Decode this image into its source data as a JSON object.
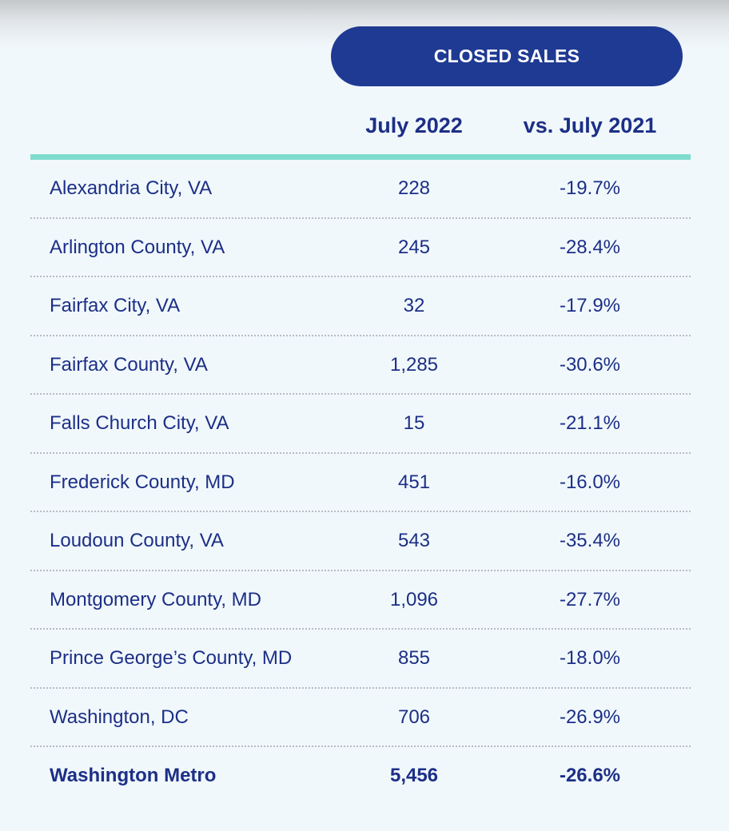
{
  "header": {
    "section_title": "CLOSED SALES",
    "col_current": "July 2022",
    "col_change": "vs. July 2021"
  },
  "rows": [
    {
      "name": "Alexandria City, VA",
      "value": "228",
      "change": "-19.7%"
    },
    {
      "name": "Arlington County, VA",
      "value": "245",
      "change": "-28.4%"
    },
    {
      "name": "Fairfax City, VA",
      "value": "32",
      "change": "-17.9%"
    },
    {
      "name": "Fairfax County, VA",
      "value": "1,285",
      "change": "-30.6%"
    },
    {
      "name": "Falls Church City, VA",
      "value": "15",
      "change": "-21.1%"
    },
    {
      "name": "Frederick County, MD",
      "value": "451",
      "change": "-16.0%"
    },
    {
      "name": "Loudoun County, VA",
      "value": "543",
      "change": "-35.4%"
    },
    {
      "name": "Montgomery County, MD",
      "value": "1,096",
      "change": "-27.7%"
    },
    {
      "name": "Prince George’s County, MD",
      "value": "855",
      "change": "-18.0%"
    },
    {
      "name": "Washington, DC",
      "value": "706",
      "change": "-26.9%"
    }
  ],
  "total": {
    "name": "Washington Metro",
    "value": "5,456",
    "change": "-26.6%"
  },
  "colors": {
    "background": "#f1f8fc",
    "pill": "#1f3a93",
    "text": "#1c2f86",
    "header_rule": "#7fdccd"
  }
}
